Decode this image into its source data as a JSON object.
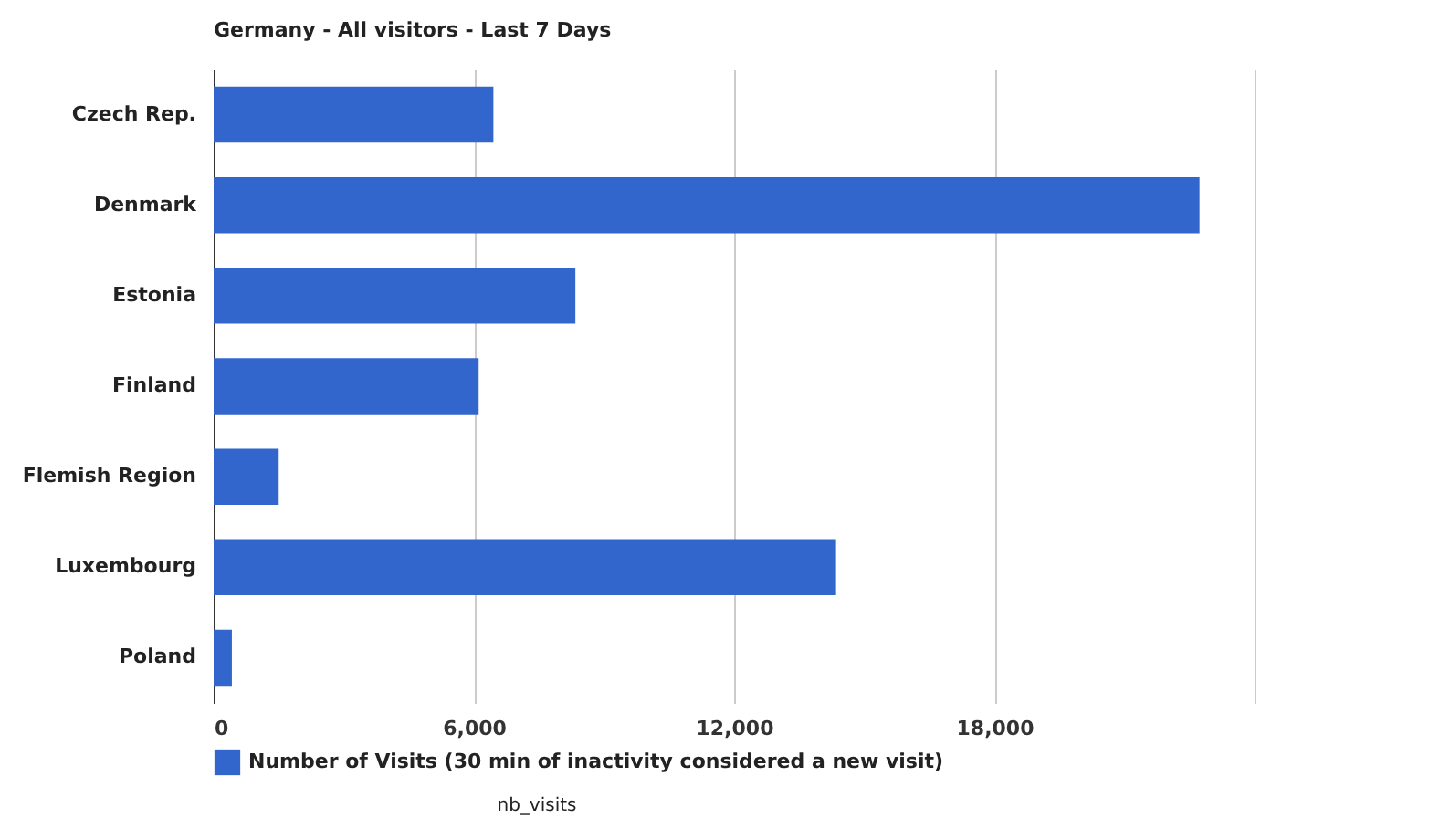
{
  "chart_data": {
    "type": "bar",
    "orientation": "horizontal",
    "title": "Germany - All visitors - Last 7 Days",
    "categories": [
      "Czech Rep.",
      "Denmark",
      "Estonia",
      "Finland",
      "Flemish Region",
      "Luxembourg",
      "Poland"
    ],
    "series": [
      {
        "name": "Number of Visits (30 min of inactivity considered a new visit)",
        "color": "#3366cc",
        "values": [
          6450,
          22730,
          8340,
          6110,
          1500,
          14350,
          420
        ]
      }
    ],
    "xlim": [
      0,
      24000
    ],
    "xticks": [
      0,
      {
        "value": 6000,
        "label": "6,000"
      },
      {
        "value": 12000,
        "label": "12,000"
      },
      {
        "value": 18000,
        "label": "18,000"
      },
      {
        "value": 24000,
        "label": null
      }
    ],
    "grid": "x",
    "legend": "bottom",
    "annotations": [
      "nb_visits"
    ]
  }
}
